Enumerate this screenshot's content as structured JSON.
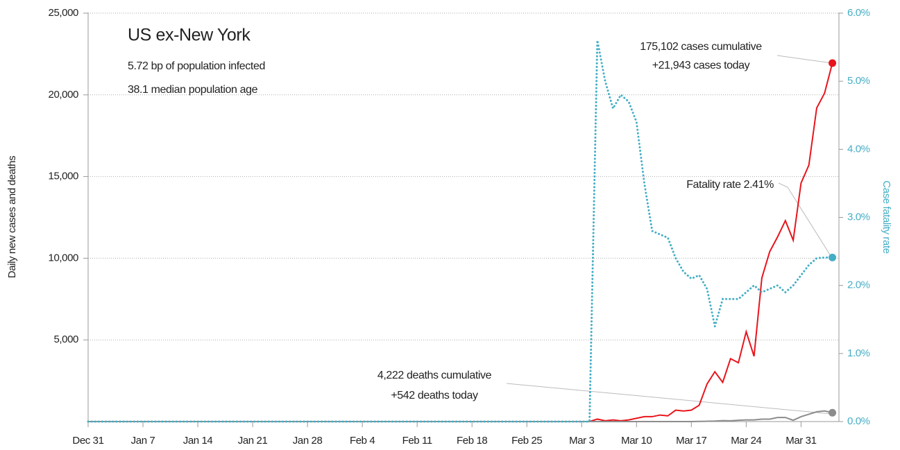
{
  "chart_data": {
    "type": "line",
    "title": "US ex-New York",
    "subtitle": [
      "5.72 bp of population infected",
      "38.1 median population age"
    ],
    "annotations": {
      "cases": [
        "175,102 cases cumulative",
        "+21,943 cases today"
      ],
      "deaths": [
        "4,222 deaths cumulative",
        "+542 deaths today"
      ],
      "fatality": "Fatality rate 2.41%"
    },
    "ylabel": "Daily new cases and deaths",
    "y2label": "Case fatality rate",
    "categories": [
      "Dec 31",
      null,
      null,
      null,
      null,
      null,
      null,
      "Jan 7",
      null,
      null,
      null,
      null,
      null,
      null,
      "Jan 14",
      null,
      null,
      null,
      null,
      null,
      null,
      "Jan 21",
      null,
      null,
      null,
      null,
      null,
      null,
      "Jan 28",
      null,
      null,
      null,
      null,
      null,
      null,
      "Feb 4",
      null,
      null,
      null,
      null,
      null,
      null,
      "Feb 11",
      null,
      null,
      null,
      null,
      null,
      null,
      "Feb 18",
      null,
      null,
      null,
      null,
      null,
      null,
      "Feb 25",
      null,
      null,
      null,
      null,
      null,
      null,
      "Mar 3",
      null,
      null,
      null,
      null,
      null,
      null,
      "Mar 10",
      null,
      null,
      null,
      null,
      null,
      null,
      "Mar 17",
      null,
      null,
      null,
      null,
      null,
      null,
      "Mar 24",
      null,
      null,
      null,
      null,
      null,
      null,
      "Mar 31",
      null,
      null,
      null,
      null
    ],
    "series": [
      {
        "name": "Cases",
        "color": "#e8141b",
        "style": "solid",
        "axis": "y",
        "values": [
          0,
          0,
          0,
          0,
          0,
          0,
          0,
          0,
          0,
          0,
          0,
          0,
          0,
          0,
          0,
          0,
          0,
          0,
          0,
          0,
          0,
          0,
          0,
          0,
          0,
          0,
          0,
          0,
          0,
          0,
          0,
          0,
          0,
          0,
          0,
          0,
          0,
          0,
          0,
          0,
          0,
          0,
          0,
          0,
          0,
          0,
          0,
          0,
          0,
          0,
          0,
          0,
          0,
          0,
          0,
          0,
          0,
          0,
          0,
          0,
          0,
          0,
          0,
          0,
          0,
          150,
          50,
          100,
          50,
          100,
          200,
          300,
          300,
          400,
          350,
          700,
          650,
          700,
          1000,
          2300,
          3050,
          2400,
          3850,
          3600,
          5500,
          4000,
          8800,
          10400,
          11300,
          12300,
          11100,
          14600,
          15700,
          19200,
          20100,
          21943
        ]
      },
      {
        "name": "Deaths",
        "color": "#8c8c8c",
        "style": "solid",
        "axis": "y",
        "values": [
          0,
          0,
          0,
          0,
          0,
          0,
          0,
          0,
          0,
          0,
          0,
          0,
          0,
          0,
          0,
          0,
          0,
          0,
          0,
          0,
          0,
          0,
          0,
          0,
          0,
          0,
          0,
          0,
          0,
          0,
          0,
          0,
          0,
          0,
          0,
          0,
          0,
          0,
          0,
          0,
          0,
          0,
          0,
          0,
          0,
          0,
          0,
          0,
          0,
          0,
          0,
          0,
          0,
          0,
          0,
          0,
          0,
          0,
          0,
          0,
          0,
          0,
          0,
          0,
          0,
          0,
          0,
          0,
          0,
          0,
          0,
          0,
          0,
          0,
          0,
          0,
          0,
          0,
          10,
          20,
          30,
          60,
          50,
          80,
          100,
          100,
          150,
          150,
          250,
          250,
          80,
          300,
          450,
          600,
          650,
          542
        ]
      },
      {
        "name": "Case fatality rate",
        "color": "#45aec6",
        "style": "dotted",
        "axis": "y2",
        "values": [
          0,
          0,
          0,
          0,
          0,
          0,
          0,
          0,
          0,
          0,
          0,
          0,
          0,
          0,
          0,
          0,
          0,
          0,
          0,
          0,
          0,
          0,
          0,
          0,
          0,
          0,
          0,
          0,
          0,
          0,
          0,
          0,
          0,
          0,
          0,
          0,
          0,
          0,
          0,
          0,
          0,
          0,
          0,
          0,
          0,
          0,
          0,
          0,
          0,
          0,
          0,
          0,
          0,
          0,
          0,
          0,
          0,
          0,
          0,
          0,
          0,
          0,
          0,
          0,
          0,
          5.6,
          5.0,
          4.6,
          4.8,
          4.7,
          4.4,
          3.5,
          2.8,
          2.75,
          2.7,
          2.4,
          2.2,
          2.1,
          2.15,
          1.95,
          1.4,
          1.8,
          1.8,
          1.8,
          1.9,
          2.0,
          1.9,
          1.95,
          2.0,
          1.9,
          2.0,
          2.15,
          2.3,
          2.4,
          2.41,
          2.41
        ]
      }
    ],
    "ylim": [
      0,
      25000
    ],
    "yticks": [
      {
        "value": 5000,
        "label": "5,000"
      },
      {
        "value": 10000,
        "label": "10,000"
      },
      {
        "value": 15000,
        "label": "15,000"
      },
      {
        "value": 20000,
        "label": "20,000"
      },
      {
        "value": 25000,
        "label": "25,000"
      }
    ],
    "y2lim": [
      0,
      6
    ],
    "y2ticks": [
      {
        "value": 0,
        "label": "0.0%"
      },
      {
        "value": 1,
        "label": "1.0%"
      },
      {
        "value": 2,
        "label": "2.0%"
      },
      {
        "value": 3,
        "label": "3.0%"
      },
      {
        "value": 4,
        "label": "4.0%"
      },
      {
        "value": 5,
        "label": "5.0%"
      },
      {
        "value": 6,
        "label": "6.0%"
      }
    ],
    "grid": true
  }
}
